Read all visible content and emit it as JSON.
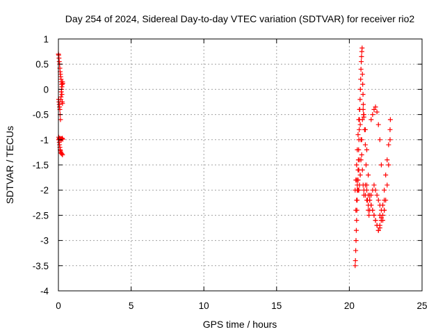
{
  "chart_data": {
    "type": "scatter",
    "title": "Day 254 of 2024, Sidereal Day-to-day VTEC variation (SDTVAR) for receiver rio2",
    "xlabel": "GPS time / hours",
    "ylabel": "SDTVAR / TECUs",
    "xlim": [
      0,
      25
    ],
    "ylim": [
      -4,
      1
    ],
    "x_ticks": [
      0,
      5,
      10,
      15,
      20,
      25
    ],
    "y_ticks": [
      -4,
      -3.5,
      -3,
      -2.5,
      -2,
      -1.5,
      -1,
      -0.5,
      0,
      0.5,
      1
    ],
    "x_tick_labels": [
      "0",
      "5",
      "10",
      "15",
      "20",
      "25"
    ],
    "y_tick_labels": [
      "-4",
      "-3.5",
      "-3",
      "-2.5",
      "-2",
      "-1.5",
      "-1",
      "-0.5",
      "0",
      "0.5",
      "1"
    ],
    "grid": true,
    "marker": "+",
    "series_color": "#ff0000",
    "series": [
      {
        "x": [
          0.0,
          0.02,
          0.04,
          0.06,
          0.08,
          0.1,
          0.12,
          0.14,
          0.16,
          0.18,
          0.2,
          0.22,
          0.24,
          0.26,
          0.28,
          0.3,
          0.02,
          0.04,
          0.06,
          0.08,
          0.1,
          0.12,
          0.14,
          0.16,
          0.18,
          0.2,
          0.22,
          0.24,
          0.26,
          0.28,
          0.02,
          0.04,
          0.06,
          0.08,
          0.1,
          0.12,
          0.14,
          0.16,
          0.2,
          0.24,
          0.28,
          0.02,
          0.06,
          0.1,
          0.14,
          0.18,
          0.22,
          0.26,
          0.3
        ],
        "y": [
          0.7,
          0.68,
          0.62,
          0.55,
          0.5,
          0.42,
          0.35,
          0.3,
          0.25,
          0.2,
          0.15,
          0.1,
          0.05,
          0.1,
          0.15,
          0.12,
          -0.2,
          -0.25,
          -0.3,
          -0.35,
          -0.4,
          -0.5,
          -0.6,
          -0.2,
          -0.15,
          -0.05,
          0.0,
          -0.1,
          -0.25,
          -0.28,
          -0.95,
          -1.0,
          -1.05,
          -1.1,
          -1.15,
          -1.2,
          -1.22,
          -1.25,
          -1.27,
          -1.28,
          -1.3,
          -1.0,
          -0.98,
          -0.97,
          -0.98,
          -1.0,
          -0.98,
          -0.97,
          -0.99
        ]
      },
      {
        "x": [
          20.4,
          20.42,
          20.44,
          20.46,
          20.48,
          20.5,
          20.52,
          20.54,
          20.56,
          20.58,
          20.6,
          20.62,
          20.64,
          20.66,
          20.68,
          20.7,
          20.72,
          20.74,
          20.76,
          20.78,
          20.8,
          20.82,
          20.84,
          20.86,
          20.88,
          20.9,
          20.92,
          20.94,
          20.96,
          20.98,
          20.5,
          20.55,
          20.6,
          20.65,
          20.7,
          20.75,
          20.8,
          20.85,
          20.9,
          20.95,
          21.0,
          21.05,
          21.1,
          21.15,
          21.2,
          21.25,
          21.3,
          21.35,
          21.4,
          21.0,
          21.1,
          21.2,
          21.3,
          21.4,
          21.5,
          21.6,
          21.7,
          21.8,
          21.9,
          22.0,
          22.1,
          22.2,
          22.3,
          22.4,
          22.5,
          22.6,
          22.7,
          22.8,
          21.0,
          21.1,
          21.2,
          21.3,
          21.4,
          21.5,
          21.6,
          21.7,
          21.8,
          21.9,
          22.0,
          22.1,
          22.2,
          22.3,
          22.4,
          21.5,
          21.6,
          21.7,
          21.8,
          21.9,
          22.0,
          22.1,
          22.2,
          22.1,
          22.2,
          22.3,
          22.4,
          22.5,
          22.6,
          22.7,
          22.8,
          22.82,
          20.45,
          20.5,
          20.55,
          20.6,
          20.65,
          20.7,
          21.1,
          21.2,
          21.3,
          21.4,
          21.5,
          21.6,
          21.7,
          21.8,
          21.9,
          22.0,
          22.1,
          22.2,
          22.3,
          22.4,
          20.4,
          20.45,
          20.5,
          20.55,
          20.6,
          20.65,
          20.7,
          20.75,
          20.8,
          20.85,
          20.9,
          20.95,
          21.0
        ],
        "y": [
          -3.5,
          -3.4,
          -3.2,
          -3.0,
          -2.8,
          -2.6,
          -2.4,
          -2.2,
          -2.0,
          -1.8,
          -1.6,
          -1.4,
          -1.2,
          -1.0,
          -0.8,
          -0.6,
          -0.4,
          -0.2,
          0.0,
          0.2,
          0.4,
          0.55,
          0.65,
          0.75,
          0.82,
          0.3,
          0.1,
          -0.1,
          -0.3,
          -0.5,
          -1.8,
          -1.9,
          -2.0,
          -2.0,
          -1.9,
          -1.7,
          -1.4,
          -1.0,
          -0.6,
          -0.4,
          -0.55,
          -0.8,
          -1.1,
          -1.5,
          -1.9,
          -2.2,
          -2.4,
          -2.5,
          -2.4,
          -0.5,
          -0.8,
          -1.2,
          -1.7,
          -2.1,
          -2.3,
          -2.4,
          -2.5,
          -2.6,
          -2.7,
          -2.8,
          -2.75,
          -2.6,
          -2.3,
          -2.0,
          -1.7,
          -1.4,
          -1.1,
          -0.8,
          -2.0,
          -2.1,
          -2.2,
          -2.3,
          -2.2,
          -2.1,
          -2.0,
          -1.9,
          -2.0,
          -2.1,
          -2.2,
          -2.3,
          -2.4,
          -2.3,
          -2.2,
          -0.6,
          -0.5,
          -0.4,
          -0.35,
          -0.45,
          -0.7,
          -1.0,
          -1.5,
          -2.5,
          -2.55,
          -2.6,
          -2.4,
          -2.2,
          -1.9,
          -1.5,
          -1.0,
          -0.6,
          -2.4,
          -2.2,
          -2.0,
          -1.8,
          -1.6,
          -1.4,
          -1.9,
          -2.0,
          -2.1,
          -2.2,
          -2.3,
          -2.4,
          -2.5,
          -2.6,
          -2.7,
          -2.8,
          -2.7,
          -2.6,
          -2.5,
          -2.4,
          -2.0,
          -1.8,
          -1.5,
          -1.2,
          -0.9,
          -0.6,
          -0.4,
          -0.7,
          -1.0,
          -1.3,
          -1.6,
          -1.9,
          -2.1
        ]
      }
    ]
  }
}
